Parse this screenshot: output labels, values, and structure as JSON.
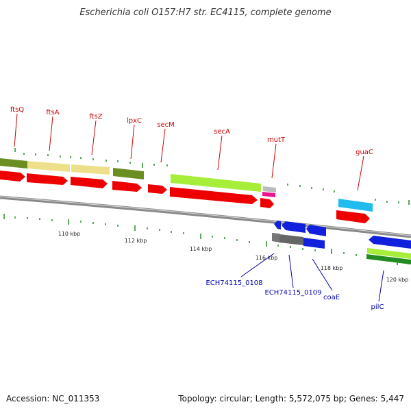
{
  "title": "Escherichia coli O157:H7 str. EC4115, complete genome",
  "accession": "Accession: NC_011353",
  "summary": "Topology: circular; Length: 5,572,075 bp; Genes: 5,447",
  "colors": {
    "red_cds": "#ee0000",
    "olive": "#6b8e23",
    "khaki": "#eee08a",
    "lime": "#a6ee3a",
    "gray_gene": "#777777",
    "magenta": "#ee1493",
    "cyan": "#22bbee",
    "blue_cds": "#1020dd",
    "top_label": "#cc0000",
    "bottom_label": "#0000aa",
    "tick": "#228b22",
    "backbone": "#8a8a8a"
  },
  "gene_labels_top": [
    {
      "name": "ftsQ"
    },
    {
      "name": "ftsA"
    },
    {
      "name": "ftsZ"
    },
    {
      "name": "lpxC"
    },
    {
      "name": "secM"
    },
    {
      "name": "secA"
    },
    {
      "name": "mutT"
    },
    {
      "name": "guaC"
    }
  ],
  "gene_labels_bottom": [
    {
      "name": "ECH74115_0108"
    },
    {
      "name": "ECH74115_0109"
    },
    {
      "name": "coaE"
    },
    {
      "name": "pilC"
    }
  ],
  "kbp_labels": [
    "110 kbp",
    "112 kbp",
    "114 kbp",
    "116 kbp",
    "118 kbp",
    "120 kbp"
  ]
}
